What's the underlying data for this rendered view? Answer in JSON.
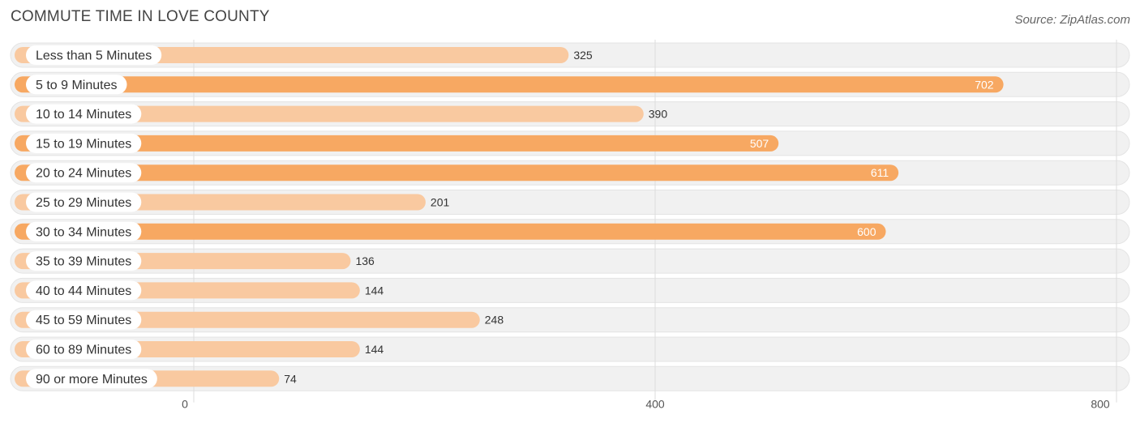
{
  "header": {
    "title": "COMMUTE TIME IN LOVE COUNTY",
    "source": "Source: ZipAtlas.com"
  },
  "colors": {
    "bar_light": "#f9c9a0",
    "bar_strong": "#f7a862",
    "track": "#f1f1f1",
    "grid": "#dddddd"
  },
  "chart_data": {
    "type": "bar",
    "orientation": "horizontal",
    "categories": [
      "Less than 5 Minutes",
      "5 to 9 Minutes",
      "10 to 14 Minutes",
      "15 to 19 Minutes",
      "20 to 24 Minutes",
      "25 to 29 Minutes",
      "30 to 34 Minutes",
      "35 to 39 Minutes",
      "40 to 44 Minutes",
      "45 to 59 Minutes",
      "60 to 89 Minutes",
      "90 or more Minutes"
    ],
    "values": [
      325,
      702,
      390,
      507,
      611,
      201,
      600,
      136,
      144,
      248,
      144,
      74
    ],
    "value_labels": [
      "325",
      "702",
      "390",
      "507",
      "611",
      "201",
      "600",
      "136",
      "144",
      "248",
      "144",
      "74"
    ],
    "xlim": [
      0,
      800
    ],
    "xticks": [
      0,
      400,
      800
    ],
    "xtick_labels": [
      "0",
      "400",
      "800"
    ],
    "grid": true,
    "legend": "none"
  }
}
